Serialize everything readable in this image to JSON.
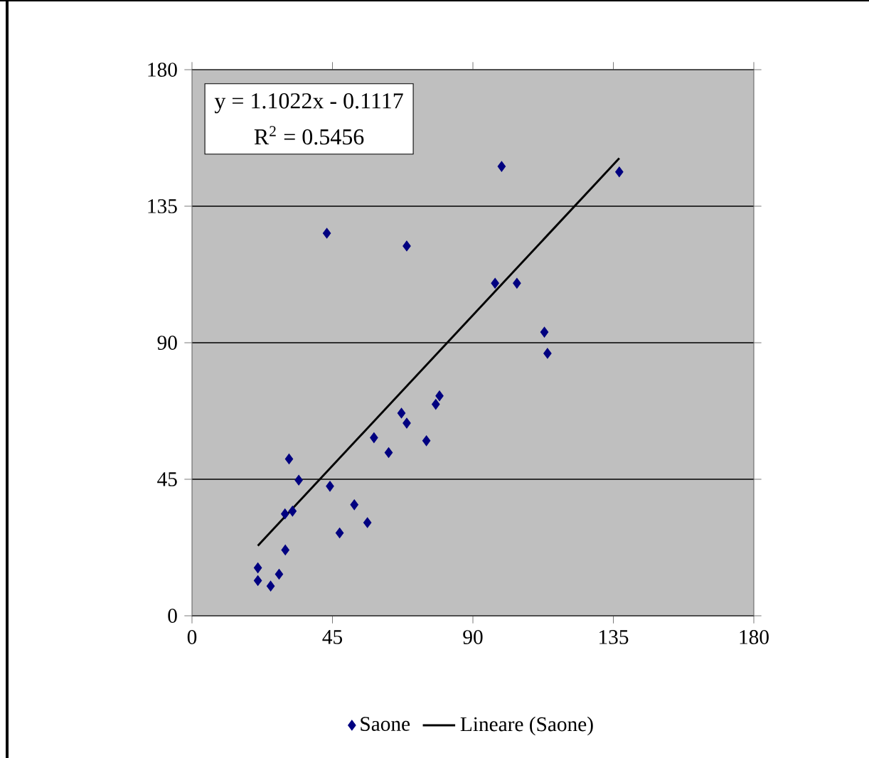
{
  "chart_data": {
    "type": "scatter",
    "xlim": [
      0,
      180
    ],
    "ylim": [
      0,
      180
    ],
    "xticks": [
      0,
      45,
      90,
      135,
      180
    ],
    "yticks": [
      0,
      45,
      90,
      135,
      180
    ],
    "grid": "y",
    "legend": "bottom",
    "annotations": [
      "y = 1.1022x - 0.1117",
      "R$^{2}$ = 0.5456"
    ],
    "series": [
      {
        "name": "Saone",
        "marker": "diamond",
        "color": "#000080",
        "x": [
          21.1,
          21.1,
          25.2,
          27.9,
          29.9,
          29.8,
          32.2,
          31.1,
          34.2,
          44.2,
          47.3,
          52.0,
          56.2,
          58.3,
          63.0,
          67.1,
          68.8,
          75.1,
          78.1,
          79.3,
          43.2,
          68.8,
          99.2,
          136.9,
          97.1,
          104.1,
          112.9,
          113.9
        ],
        "values": [
          15.8,
          11.6,
          9.8,
          13.7,
          21.7,
          33.6,
          34.5,
          51.7,
          44.7,
          42.7,
          27.3,
          36.6,
          30.7,
          58.7,
          53.8,
          66.8,
          63.5,
          57.7,
          69.7,
          72.5,
          126.1,
          121.9,
          148.1,
          146.3,
          109.6,
          109.6,
          93.5,
          86.5
        ]
      },
      {
        "name": "Lineare (Saone)",
        "type": "line",
        "color": "#000000",
        "x": [
          21.1,
          136.9
        ],
        "values": [
          23.1,
          150.8
        ]
      }
    ]
  }
}
